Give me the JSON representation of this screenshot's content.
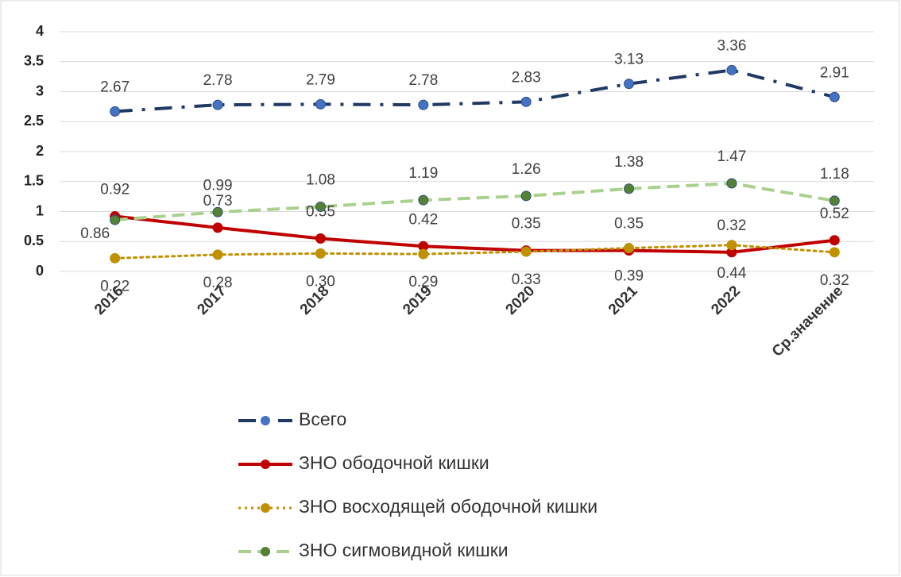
{
  "chart_data": {
    "type": "line",
    "categories": [
      "2016",
      "2017",
      "2018",
      "2019",
      "2020",
      "2021",
      "2022",
      "Ср.значение"
    ],
    "ylim": [
      0,
      4
    ],
    "yticks": [
      0,
      0.5,
      1,
      1.5,
      2,
      2.5,
      3,
      3.5,
      4
    ],
    "grid": true,
    "legend": "bottom",
    "series": [
      {
        "name": "Всего",
        "color": "#203864",
        "marker_color": "#4472c4",
        "line_style": "dash-dot",
        "values": [
          2.67,
          2.78,
          2.79,
          2.78,
          2.83,
          3.13,
          3.36,
          2.91
        ],
        "value_labels": [
          "2.67",
          "2.78",
          "2.79",
          "2.78",
          "2.83",
          "3.13",
          "3.36",
          "2.91"
        ]
      },
      {
        "name": "ЗНО ободочной кишки",
        "color": "#c00000",
        "marker_color": "#c00000",
        "line_style": "solid",
        "values": [
          0.92,
          0.73,
          0.55,
          0.42,
          0.35,
          0.35,
          0.32,
          0.52
        ],
        "value_labels": [
          "0.92",
          "0.73",
          "0.55",
          "0.42",
          "0.35",
          "0.35",
          "0.32",
          "0.52"
        ]
      },
      {
        "name": "ЗНО восходящей ободочной кишки",
        "color": "#bf9000",
        "marker_color": "#bf9000",
        "line_style": "dotted",
        "values": [
          0.22,
          0.28,
          0.3,
          0.29,
          0.33,
          0.39,
          0.44,
          0.32
        ],
        "value_labels": [
          "0.22",
          "0.28",
          "0.30",
          "0.29",
          "0.33",
          "0.39",
          "0.44",
          "0.32"
        ]
      },
      {
        "name": "ЗНО сигмовидной кишки",
        "color": "#a9d18e",
        "marker_color": "#548235",
        "line_style": "dashed",
        "values": [
          0.86,
          0.99,
          1.08,
          1.19,
          1.26,
          1.38,
          1.47,
          1.18
        ],
        "value_labels": [
          "0.86",
          "0.99",
          "1.08",
          "1.19",
          "1.26",
          "1.38",
          "1.47",
          "1.18"
        ]
      }
    ]
  }
}
